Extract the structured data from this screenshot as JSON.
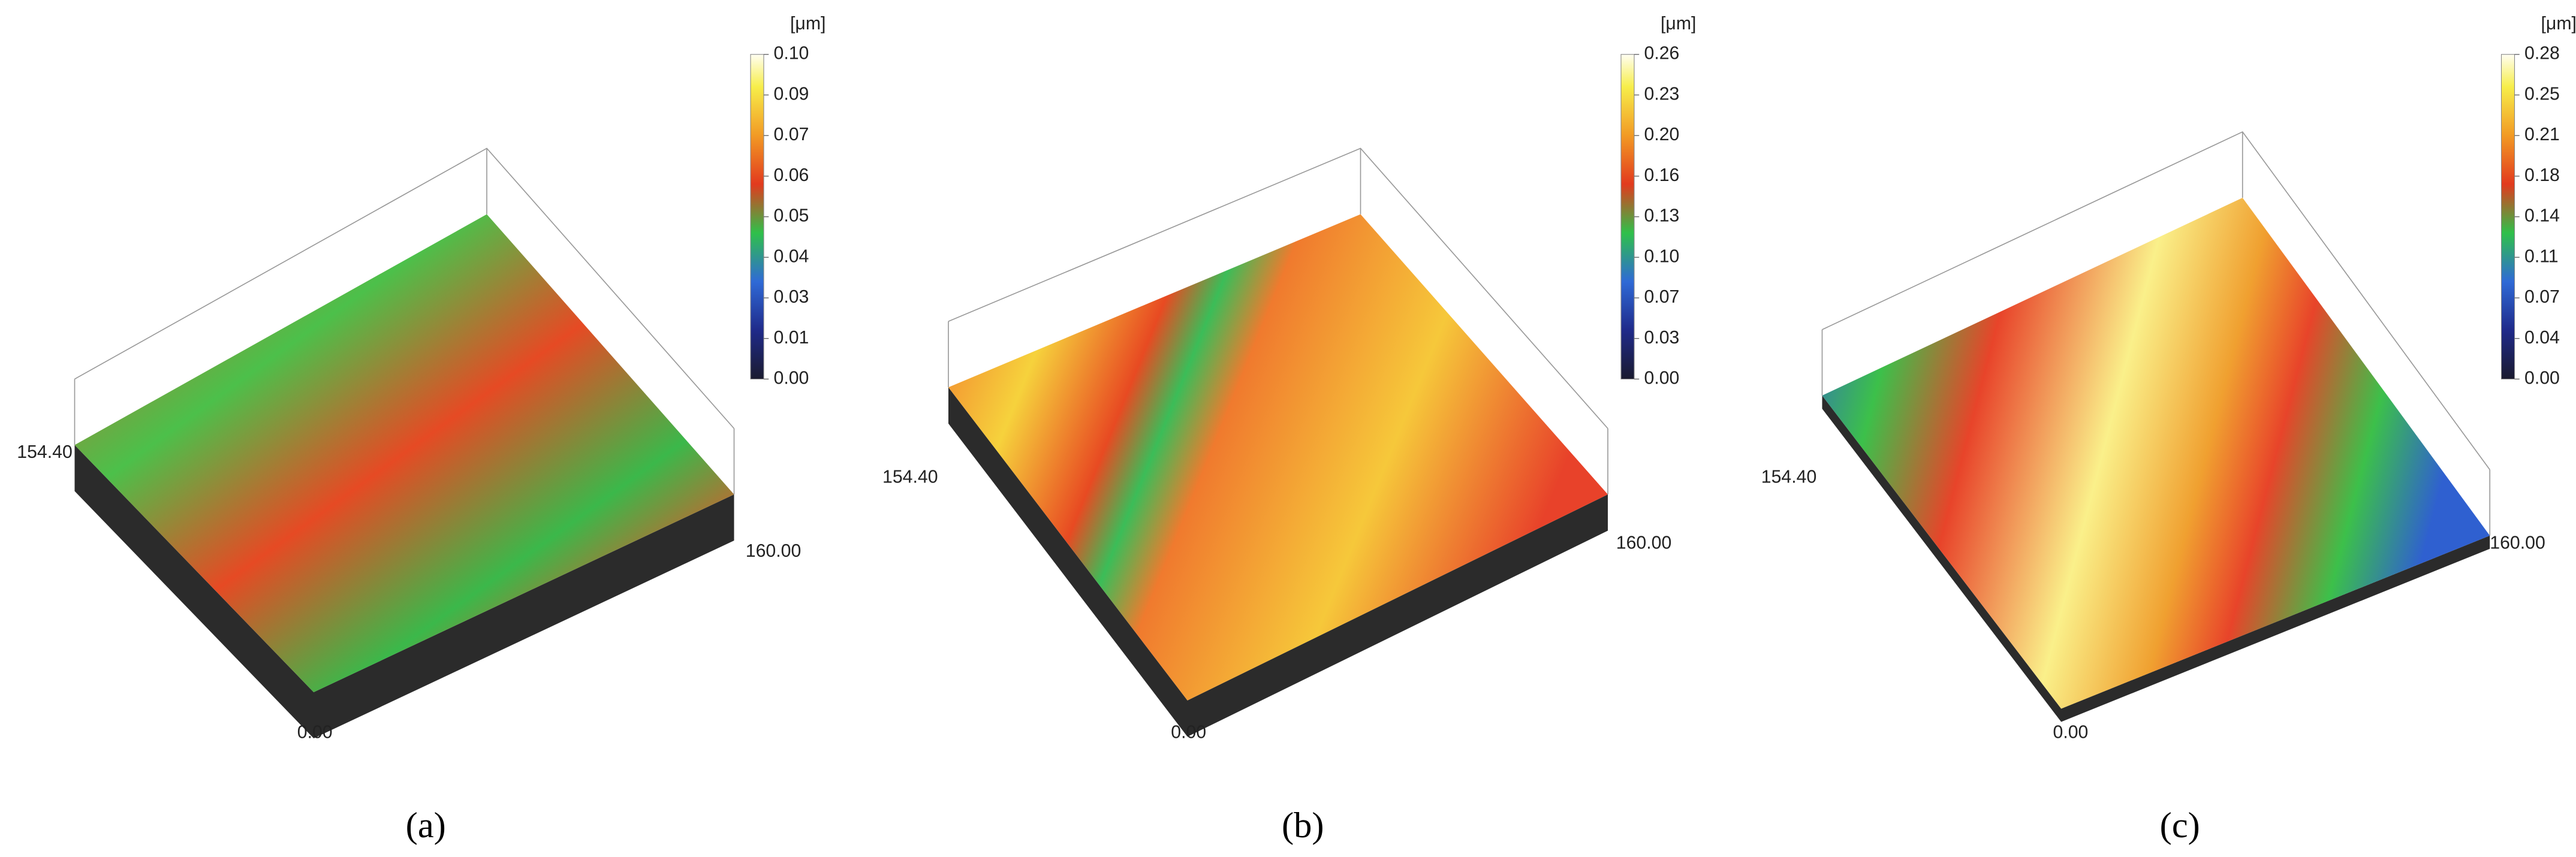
{
  "panels": [
    {
      "unit": "[μm]",
      "colorbar_ticks": [
        "0.10",
        "0.09",
        "0.07",
        "0.06",
        "0.05",
        "0.04",
        "0.03",
        "0.01",
        "0.00"
      ],
      "y_label": "154.40",
      "x_label": "160.00",
      "origin_label": "0.00",
      "caption": "(a)"
    },
    {
      "unit": "[μm]",
      "colorbar_ticks": [
        "0.26",
        "0.23",
        "0.20",
        "0.16",
        "0.13",
        "0.10",
        "0.07",
        "0.03",
        "0.00"
      ],
      "y_label": "154.40",
      "x_label": "160.00",
      "origin_label": "0.00",
      "caption": "(b)"
    },
    {
      "unit": "[μm]",
      "colorbar_ticks": [
        "0.28",
        "0.25",
        "0.21",
        "0.18",
        "0.14",
        "0.11",
        "0.07",
        "0.04",
        "0.00"
      ],
      "y_label": "154.40",
      "x_label": "160.00",
      "origin_label": "0.00",
      "caption": "(c)"
    }
  ]
}
